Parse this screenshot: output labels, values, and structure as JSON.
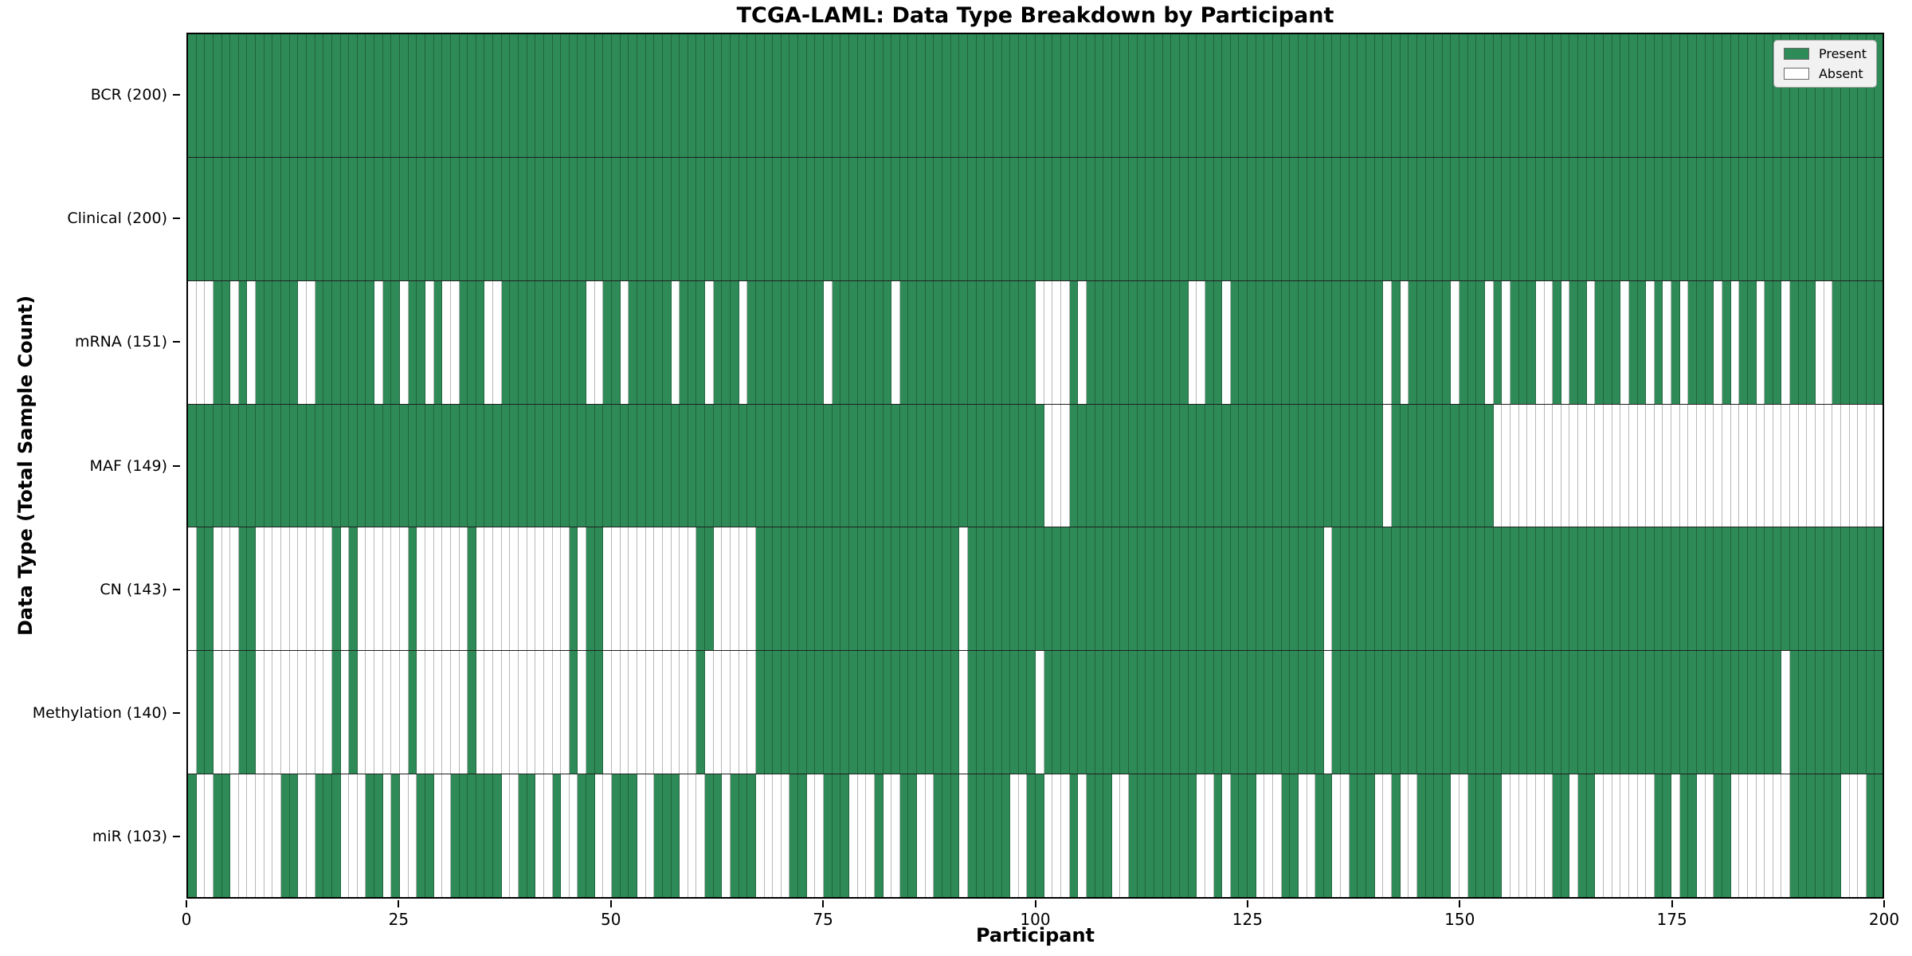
{
  "title": "TCGA-LAML: Data Type Breakdown by Participant",
  "chart_data": {
    "type": "heatmap",
    "title": "TCGA-LAML: Data Type Breakdown by Participant",
    "xlabel": "Participant",
    "ylabel": "Data Type (Total Sample Count)",
    "x_range": [
      0,
      200
    ],
    "n_participants": 200,
    "grid": false,
    "legend_position": "upper right",
    "colors": {
      "present": "#2e8b57",
      "absent": "#ffffff",
      "cell_edge": "rgba(0,0,0,0.28)",
      "row_divider": "#1f1f1f",
      "legend_bg": "#f1f1f1"
    },
    "legend_entries": [
      {
        "label": "Present",
        "color": "#2e8b57"
      },
      {
        "label": "Absent",
        "color": "#ffffff"
      }
    ],
    "x_ticks": [
      {
        "label": "0",
        "value": 0
      },
      {
        "label": "25",
        "value": 25
      },
      {
        "label": "50",
        "value": 50
      },
      {
        "label": "75",
        "value": 75
      },
      {
        "label": "100",
        "value": 100
      },
      {
        "label": "125",
        "value": 125
      },
      {
        "label": "150",
        "value": 150
      },
      {
        "label": "175",
        "value": 175
      },
      {
        "label": "200",
        "value": 200
      }
    ],
    "rows": [
      {
        "label": "BCR (200)",
        "name": "BCR",
        "present_count": 200,
        "pattern": "11111111111111111111111111111111111111111111111111111111111111111111111111111111111111111111111111111111111111111111111111111111111111111111111111111111111111111111111111111111111111111111111111111111"
      },
      {
        "label": "Clinical (200)",
        "name": "Clinical",
        "present_count": 200,
        "pattern": "11111111111111111111111111111111111111111111111111111111111111111111111111111111111111111111111111111111111111111111111111111111111111111111111111111111111111111111111111111111111111111111111111111111"
      },
      {
        "label": "mRNA (151)",
        "name": "mRNA",
        "present_count": 151,
        "pattern": "00011010111110011111110110110100111001111111111001101111101110111011111111101111111011111111111111110000101111111111110011011111111111111111101011111011101011100101101110110101011101011011011100111111"
      },
      {
        "label": "MAF (149)",
        "name": "MAF",
        "present_count": 149,
        "pattern": "11111111111111111111111111111111111111111111111111111111111111111111111111111111111111111111111111111000111111111111111111111111111111111111101111111111110000000000000000000000000000000000000000000000"
      },
      {
        "label": "CN (143)",
        "name": "CN",
        "present_count": 143,
        "pattern": "01100011000000000101000000100000010000000000010110000000000011000001111111111111111111111110111111111111111111111111111111111111111111011111111111111111111111111111111111111111111111111111111111111111"
      },
      {
        "label": "Methylation (140)",
        "name": "Methylation",
        "present_count": 140,
        "pattern": "01100011000000000101000000100000010000000000010110000000000010000001111111111111111111111110111111110111111111111111111111111111111111011111111111111111111111111111111111111111111111111111011111111111"
      },
      {
        "label": "miR (103)",
        "name": "miR",
        "present_count": 103,
        "pattern": "10011000000110011100011010011001111110011001001100111001110001101110000110011100010011001110111110011000101110011111111001011100011001100111001001111001111000000110110000000110110011000000011111100011"
      }
    ]
  }
}
